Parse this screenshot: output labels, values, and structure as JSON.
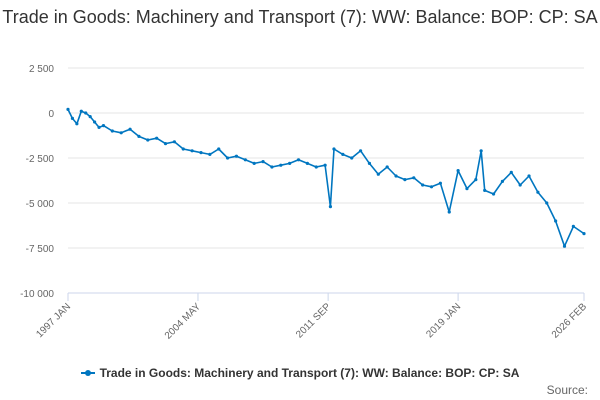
{
  "chart_data": {
    "type": "line",
    "title": "Trade in Goods: Machinery and Transport (7): WW: Balance: BOP: CP: SA",
    "xlabel": "",
    "ylabel": "",
    "ylim": [
      -10000,
      2500
    ],
    "yticks": [
      2500,
      0,
      -2500,
      -5000,
      -7500,
      -10000
    ],
    "ytick_labels": [
      "2 500",
      "0",
      "-2 500",
      "-5 000",
      "-7 500",
      "-10 000"
    ],
    "xlim": [
      1997.0,
      2026.1
    ],
    "xticks": [
      1997.0,
      2004.33,
      2011.67,
      2019.0,
      2026.1
    ],
    "xtick_labels": [
      "1997 JAN",
      "2004 MAY",
      "2011 SEP",
      "2019 JAN",
      "2026 FEB"
    ],
    "grid": true,
    "series": [
      {
        "name": "Trade in Goods: Machinery and Transport (7): WW: Balance: BOP: CP: SA",
        "color": "#0076c0",
        "x": [
          1997.0,
          1997.25,
          1997.5,
          1997.75,
          1998.0,
          1998.25,
          1998.5,
          1998.75,
          1999.0,
          1999.5,
          2000.0,
          2000.5,
          2001.0,
          2001.5,
          2002.0,
          2002.5,
          2003.0,
          2003.5,
          2004.0,
          2004.5,
          2005.0,
          2005.5,
          2006.0,
          2006.5,
          2007.0,
          2007.5,
          2008.0,
          2008.5,
          2009.0,
          2009.5,
          2010.0,
          2010.5,
          2011.0,
          2011.5,
          2011.8,
          2012.0,
          2012.5,
          2013.0,
          2013.5,
          2014.0,
          2014.5,
          2015.0,
          2015.5,
          2016.0,
          2016.5,
          2017.0,
          2017.5,
          2018.0,
          2018.5,
          2019.0,
          2019.5,
          2020.0,
          2020.3,
          2020.5,
          2021.0,
          2021.5,
          2022.0,
          2022.5,
          2023.0,
          2023.5,
          2024.0,
          2024.5,
          2025.0,
          2025.5,
          2026.1
        ],
        "values": [
          200,
          -300,
          -600,
          100,
          0,
          -200,
          -500,
          -800,
          -700,
          -1000,
          -1100,
          -900,
          -1300,
          -1500,
          -1400,
          -1700,
          -1600,
          -2000,
          -2100,
          -2200,
          -2300,
          -2000,
          -2500,
          -2400,
          -2600,
          -2800,
          -2700,
          -3000,
          -2900,
          -2800,
          -2600,
          -2800,
          -3000,
          -2900,
          -5200,
          -2000,
          -2300,
          -2500,
          -2100,
          -2800,
          -3400,
          -3000,
          -3500,
          -3700,
          -3600,
          -4000,
          -4100,
          -3900,
          -5500,
          -3200,
          -4200,
          -3700,
          -2100,
          -4300,
          -4500,
          -3800,
          -3300,
          -4000,
          -3500,
          -4400,
          -5000,
          -6000,
          -7400,
          -6300,
          -6700
        ]
      }
    ]
  },
  "legend": {
    "label": "Trade in Goods: Machinery and Transport (7): WW: Balance: BOP: CP: SA"
  },
  "source": {
    "label": "Source:"
  }
}
